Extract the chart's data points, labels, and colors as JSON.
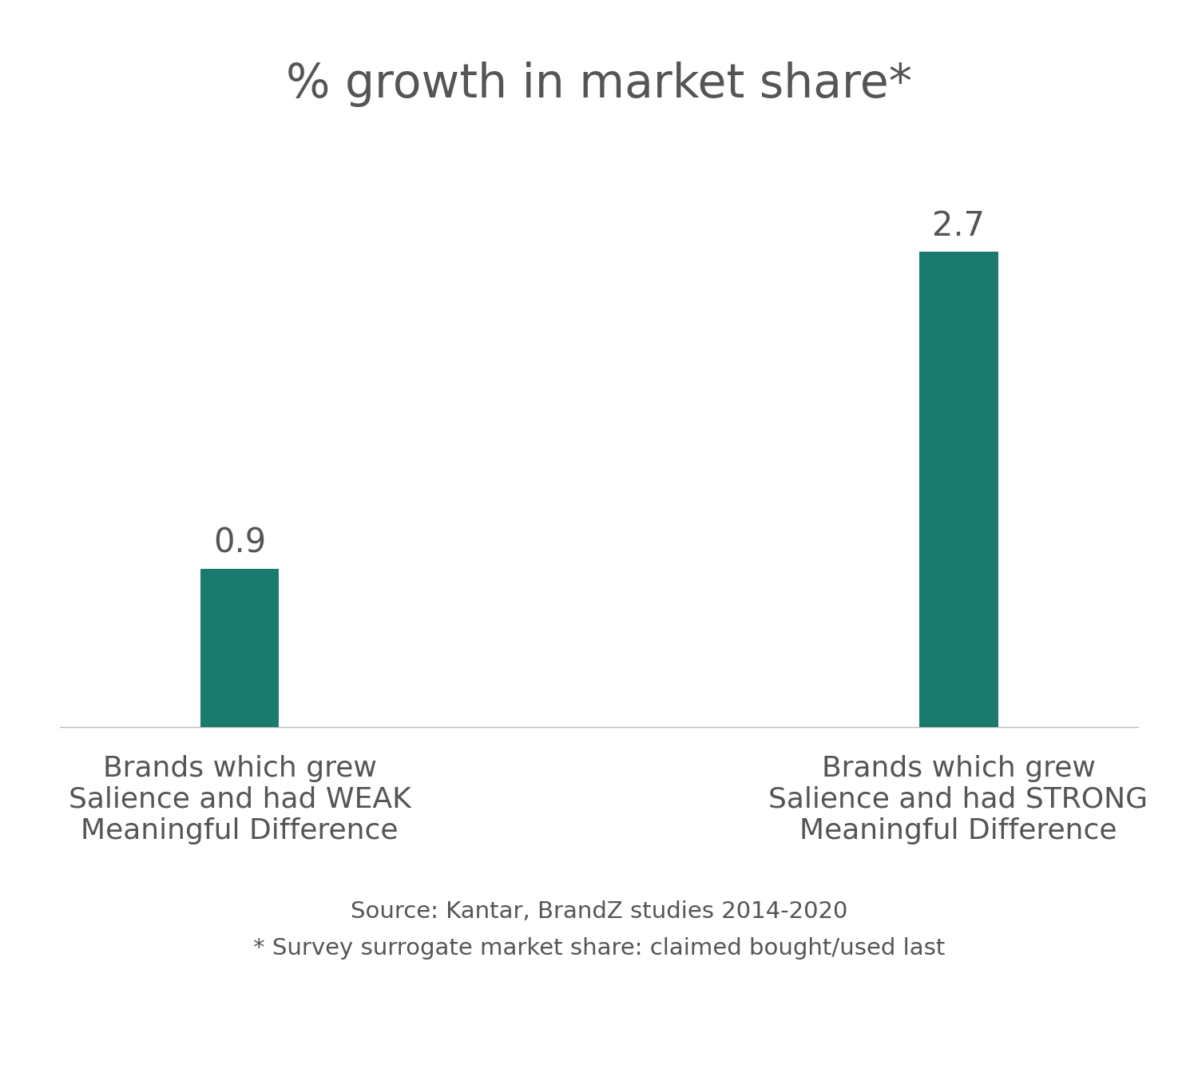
{
  "title": "% growth in market share*",
  "categories": [
    "Brands which grew\nSalience and had WEAK\nMeaningful Difference",
    "Brands which grew\nSalience and had STRONG\nMeaningful Difference"
  ],
  "values": [
    0.9,
    2.7
  ],
  "bar_color": "#1a7a6e",
  "bar_width": 0.22,
  "value_labels": [
    "0.9",
    "2.7"
  ],
  "source_text": "Source: Kantar, BrandZ studies 2014-2020\n* Survey surrogate market share: claimed bought/used last",
  "background_color": "#ffffff",
  "text_color": "#555555",
  "title_fontsize": 42,
  "label_fontsize": 26,
  "value_fontsize": 30,
  "source_fontsize": 21,
  "ylim": [
    0,
    3.4
  ],
  "x_positions": [
    1,
    3
  ]
}
